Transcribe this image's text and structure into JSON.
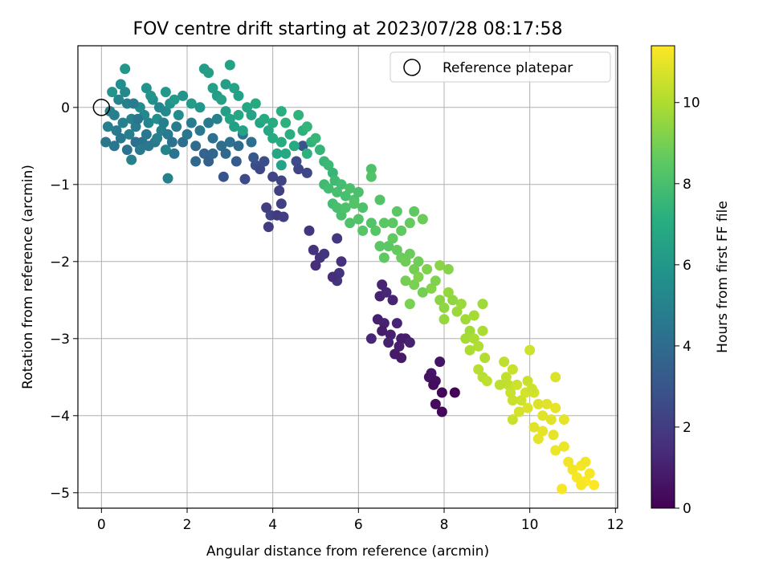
{
  "chart_data": {
    "type": "scatter",
    "title": "FOV centre drift starting at 2023/07/28 08:17:58",
    "xlabel": "Angular distance from reference (arcmin)",
    "ylabel": "Rotation from reference (arcmin)",
    "xlim": [
      -0.55,
      12.05
    ],
    "ylim": [
      -5.2,
      0.8
    ],
    "x_ticks": [
      0,
      2,
      4,
      6,
      8,
      10,
      12
    ],
    "y_ticks": [
      0,
      -1,
      -2,
      -3,
      -4,
      -5
    ],
    "x_tick_labels": [
      "0",
      "2",
      "4",
      "6",
      "8",
      "10",
      "12"
    ],
    "y_tick_labels": [
      "0",
      "−1",
      "−2",
      "−3",
      "−4",
      "−5"
    ],
    "grid": true,
    "legend": {
      "placement": "top-right",
      "entries": [
        "Reference platepar"
      ]
    },
    "reference_point": {
      "x": 0,
      "y": 0
    },
    "colorbar": {
      "label": "Hours from first FF file",
      "range": [
        0,
        11.4
      ],
      "ticks": [
        0,
        2,
        4,
        6,
        8,
        10
      ],
      "tick_labels": [
        "0",
        "2",
        "4",
        "6",
        "8",
        "10"
      ],
      "colormap": "viridis"
    },
    "points": [
      [
        0.3,
        -0.1,
        4.9
      ],
      [
        0.5,
        -0.2,
        5.0
      ],
      [
        0.7,
        -0.15,
        5.1
      ],
      [
        0.4,
        0.1,
        5.2
      ],
      [
        0.6,
        0.05,
        5.0
      ],
      [
        0.8,
        -0.25,
        4.8
      ],
      [
        1.0,
        -0.1,
        5.3
      ],
      [
        0.35,
        -0.3,
        4.7
      ],
      [
        0.55,
        0.2,
        5.4
      ],
      [
        0.9,
        0.0,
        5.5
      ],
      [
        0.2,
        -0.05,
        5.0
      ],
      [
        0.45,
        -0.4,
        4.6
      ],
      [
        0.65,
        -0.35,
        4.9
      ],
      [
        1.1,
        -0.2,
        5.2
      ],
      [
        1.3,
        -0.15,
        5.6
      ],
      [
        1.2,
        0.1,
        5.7
      ],
      [
        1.5,
        -0.05,
        5.4
      ],
      [
        1.4,
        -0.3,
        5.0
      ],
      [
        1.6,
        0.05,
        5.8
      ],
      [
        1.8,
        -0.1,
        5.5
      ],
      [
        0.75,
        0.05,
        4.8
      ],
      [
        0.85,
        -0.15,
        4.5
      ],
      [
        0.95,
        -0.45,
        4.4
      ],
      [
        1.05,
        -0.35,
        4.6
      ],
      [
        1.25,
        -0.45,
        4.5
      ],
      [
        1.35,
        0.0,
        5.3
      ],
      [
        1.45,
        -0.2,
        4.9
      ],
      [
        1.55,
        -0.35,
        4.7
      ],
      [
        1.65,
        -0.45,
        4.3
      ],
      [
        1.75,
        -0.25,
        4.8
      ],
      [
        0.25,
        0.2,
        5.9
      ],
      [
        0.45,
        0.3,
        5.6
      ],
      [
        0.55,
        0.5,
        6.0
      ],
      [
        1.05,
        0.25,
        5.8
      ],
      [
        1.15,
        0.15,
        5.9
      ],
      [
        1.5,
        0.2,
        6.1
      ],
      [
        1.7,
        0.1,
        6.2
      ],
      [
        1.9,
        0.15,
        5.9
      ],
      [
        2.1,
        0.05,
        6.3
      ],
      [
        2.3,
        0.0,
        6.0
      ],
      [
        0.15,
        -0.25,
        4.9
      ],
      [
        0.1,
        -0.45,
        4.6
      ],
      [
        0.3,
        -0.5,
        4.5
      ],
      [
        0.6,
        -0.55,
        4.3
      ],
      [
        0.8,
        -0.45,
        4.2
      ],
      [
        0.7,
        -0.68,
        5.0
      ],
      [
        0.9,
        -0.55,
        4.7
      ],
      [
        1.1,
        -0.5,
        4.6
      ],
      [
        1.3,
        -0.4,
        4.9
      ],
      [
        1.5,
        -0.55,
        5.2
      ],
      [
        1.55,
        -0.92,
        5.0
      ],
      [
        1.7,
        -0.6,
        4.4
      ],
      [
        1.9,
        -0.45,
        4.2
      ],
      [
        2.0,
        -0.35,
        4.5
      ],
      [
        2.2,
        -0.5,
        4.0
      ],
      [
        2.1,
        -0.2,
        4.8
      ],
      [
        2.3,
        -0.3,
        4.6
      ],
      [
        2.5,
        -0.2,
        4.7
      ],
      [
        2.6,
        -0.4,
        4.2
      ],
      [
        2.7,
        -0.15,
        5.0
      ],
      [
        2.2,
        -0.7,
        3.9
      ],
      [
        2.4,
        -0.6,
        3.7
      ],
      [
        2.5,
        -0.7,
        3.5
      ],
      [
        2.6,
        -0.6,
        3.8
      ],
      [
        2.8,
        -0.5,
        4.1
      ],
      [
        2.9,
        -0.6,
        3.9
      ],
      [
        3.0,
        -0.45,
        4.3
      ],
      [
        3.2,
        -0.5,
        4.0
      ],
      [
        3.3,
        -0.35,
        4.4
      ],
      [
        3.5,
        -0.45,
        4.2
      ],
      [
        2.85,
        -0.9,
        3.0
      ],
      [
        3.15,
        -0.7,
        3.3
      ],
      [
        3.35,
        -0.93,
        2.6
      ],
      [
        3.6,
        -0.75,
        2.8
      ],
      [
        3.7,
        -0.8,
        2.5
      ],
      [
        3.8,
        -0.7,
        2.7
      ],
      [
        3.55,
        -0.65,
        3.1
      ],
      [
        4.0,
        -0.9,
        2.4
      ],
      [
        4.2,
        -0.95,
        2.3
      ],
      [
        4.15,
        -1.08,
        2.2
      ],
      [
        3.85,
        -1.3,
        2.1
      ],
      [
        3.95,
        -1.4,
        2.3
      ],
      [
        4.1,
        -1.4,
        2.0
      ],
      [
        4.2,
        -1.25,
        2.2
      ],
      [
        4.25,
        -1.42,
        2.1
      ],
      [
        3.9,
        -1.55,
        2.0
      ],
      [
        4.55,
        -0.7,
        2.6
      ],
      [
        4.6,
        -0.8,
        2.4
      ],
      [
        4.8,
        -0.85,
        2.5
      ],
      [
        4.7,
        -0.5,
        3.0
      ],
      [
        4.85,
        -1.6,
        1.8
      ],
      [
        4.95,
        -1.85,
        1.7
      ],
      [
        5.1,
        -1.95,
        1.6
      ],
      [
        5.2,
        -1.9,
        1.8
      ],
      [
        5.0,
        -2.05,
        1.5
      ],
      [
        5.5,
        -1.7,
        1.9
      ],
      [
        5.55,
        -2.15,
        1.7
      ],
      [
        5.6,
        -2.0,
        1.6
      ],
      [
        5.5,
        -2.25,
        1.8
      ],
      [
        5.4,
        -2.2,
        1.5
      ],
      [
        6.55,
        -2.3,
        1.2
      ],
      [
        6.5,
        -2.45,
        1.1
      ],
      [
        6.65,
        -2.4,
        1.3
      ],
      [
        6.8,
        -2.5,
        1.2
      ],
      [
        6.45,
        -2.75,
        1.0
      ],
      [
        6.6,
        -2.8,
        1.1
      ],
      [
        6.55,
        -2.9,
        0.9
      ],
      [
        6.75,
        -2.95,
        1.0
      ],
      [
        6.9,
        -2.8,
        1.2
      ],
      [
        7.0,
        -3.0,
        0.9
      ],
      [
        6.3,
        -3.0,
        1.3
      ],
      [
        6.7,
        -3.05,
        1.1
      ],
      [
        6.85,
        -3.2,
        0.8
      ],
      [
        6.95,
        -3.1,
        1.0
      ],
      [
        7.1,
        -3.0,
        0.9
      ],
      [
        7.2,
        -3.05,
        1.1
      ],
      [
        7.0,
        -3.25,
        0.8
      ],
      [
        7.7,
        -3.45,
        0.7
      ],
      [
        7.8,
        -3.55,
        0.5
      ],
      [
        7.9,
        -3.3,
        0.6
      ],
      [
        7.65,
        -3.5,
        0.6
      ],
      [
        7.75,
        -3.6,
        0.4
      ],
      [
        7.8,
        -3.85,
        0.3
      ],
      [
        7.95,
        -3.7,
        0.2
      ],
      [
        8.25,
        -3.7,
        0.1
      ],
      [
        7.95,
        -3.95,
        0.2
      ],
      [
        3.0,
        0.55,
        6.6
      ],
      [
        2.9,
        0.3,
        6.4
      ],
      [
        3.1,
        0.25,
        6.7
      ],
      [
        3.2,
        0.15,
        6.5
      ],
      [
        3.4,
        0.0,
        6.8
      ],
      [
        3.5,
        -0.1,
        6.6
      ],
      [
        3.6,
        0.05,
        6.9
      ],
      [
        3.7,
        -0.2,
        6.7
      ],
      [
        3.8,
        -0.15,
        7.0
      ],
      [
        3.9,
        -0.3,
        6.8
      ],
      [
        2.4,
        0.5,
        6.3
      ],
      [
        2.5,
        0.45,
        6.4
      ],
      [
        2.6,
        0.25,
        6.5
      ],
      [
        2.7,
        0.15,
        6.3
      ],
      [
        2.8,
        0.1,
        6.6
      ],
      [
        2.9,
        -0.05,
        6.4
      ],
      [
        3.0,
        -0.15,
        6.7
      ],
      [
        3.1,
        -0.25,
        6.5
      ],
      [
        3.2,
        -0.1,
        6.8
      ],
      [
        3.3,
        -0.3,
        6.6
      ],
      [
        4.0,
        -0.4,
        7.0
      ],
      [
        4.2,
        -0.45,
        7.1
      ],
      [
        4.3,
        -0.6,
        6.9
      ],
      [
        4.4,
        -0.35,
        7.2
      ],
      [
        4.5,
        -0.5,
        7.0
      ],
      [
        4.1,
        -0.6,
        6.8
      ],
      [
        4.2,
        -0.75,
        6.7
      ],
      [
        4.0,
        -0.2,
        7.1
      ],
      [
        4.2,
        -0.05,
        7.2
      ],
      [
        4.3,
        -0.2,
        7.3
      ],
      [
        4.6,
        -0.1,
        7.4
      ],
      [
        4.7,
        -0.3,
        7.3
      ],
      [
        4.8,
        -0.25,
        7.5
      ],
      [
        4.9,
        -0.45,
        7.4
      ],
      [
        5.0,
        -0.4,
        7.6
      ],
      [
        5.1,
        -0.55,
        7.5
      ],
      [
        4.8,
        -0.6,
        7.3
      ],
      [
        5.2,
        -0.7,
        7.6
      ],
      [
        5.3,
        -0.75,
        7.7
      ],
      [
        5.4,
        -0.85,
        7.6
      ],
      [
        5.2,
        -1.0,
        7.8
      ],
      [
        5.3,
        -1.05,
        7.9
      ],
      [
        5.45,
        -0.95,
        7.8
      ],
      [
        5.5,
        -1.1,
        8.0
      ],
      [
        5.6,
        -1.0,
        7.9
      ],
      [
        5.7,
        -1.15,
        8.0
      ],
      [
        5.8,
        -1.05,
        8.1
      ],
      [
        5.9,
        -1.2,
        8.2
      ],
      [
        6.0,
        -1.1,
        8.1
      ],
      [
        6.1,
        -1.3,
        8.2
      ],
      [
        5.4,
        -1.25,
        7.9
      ],
      [
        5.5,
        -1.3,
        8.0
      ],
      [
        5.6,
        -1.4,
        8.1
      ],
      [
        5.7,
        -1.3,
        8.2
      ],
      [
        5.8,
        -1.5,
        8.2
      ],
      [
        5.9,
        -1.25,
        8.3
      ],
      [
        6.0,
        -1.45,
        8.3
      ],
      [
        6.1,
        -1.6,
        8.4
      ],
      [
        6.3,
        -1.5,
        8.3
      ],
      [
        6.4,
        -1.6,
        8.4
      ],
      [
        6.5,
        -1.8,
        8.5
      ],
      [
        6.6,
        -1.95,
        8.6
      ],
      [
        6.7,
        -1.8,
        8.5
      ],
      [
        6.8,
        -1.7,
        8.6
      ],
      [
        6.9,
        -1.85,
        8.7
      ],
      [
        7.0,
        -1.95,
        8.8
      ],
      [
        7.1,
        -2.0,
        8.9
      ],
      [
        7.2,
        -1.9,
        8.8
      ],
      [
        7.3,
        -2.1,
        9.0
      ],
      [
        7.4,
        -2.0,
        8.9
      ],
      [
        6.8,
        -1.5,
        8.5
      ],
      [
        7.0,
        -1.6,
        8.6
      ],
      [
        7.2,
        -1.5,
        8.7
      ],
      [
        7.3,
        -1.35,
        8.6
      ],
      [
        6.9,
        -1.35,
        8.5
      ],
      [
        7.5,
        -1.45,
        8.8
      ],
      [
        6.3,
        -0.8,
        8.2
      ],
      [
        6.3,
        -0.9,
        8.3
      ],
      [
        6.5,
        -1.2,
        8.3
      ],
      [
        6.6,
        -1.5,
        8.5
      ],
      [
        7.1,
        -2.25,
        9.0
      ],
      [
        7.3,
        -2.3,
        9.1
      ],
      [
        7.4,
        -2.2,
        9.2
      ],
      [
        7.5,
        -2.4,
        9.0
      ],
      [
        7.2,
        -2.55,
        9.1
      ],
      [
        7.6,
        -2.1,
        9.2
      ],
      [
        7.7,
        -2.35,
        9.3
      ],
      [
        7.8,
        -2.25,
        9.2
      ],
      [
        7.9,
        -2.05,
        9.4
      ],
      [
        8.1,
        -2.1,
        9.3
      ],
      [
        7.9,
        -2.5,
        9.4
      ],
      [
        8.0,
        -2.6,
        9.5
      ],
      [
        8.1,
        -2.4,
        9.6
      ],
      [
        8.2,
        -2.5,
        9.5
      ],
      [
        8.3,
        -2.65,
        9.7
      ],
      [
        8.0,
        -2.75,
        9.6
      ],
      [
        8.4,
        -2.55,
        9.7
      ],
      [
        8.5,
        -2.75,
        9.8
      ],
      [
        8.6,
        -2.9,
        9.8
      ],
      [
        8.7,
        -2.7,
        9.9
      ],
      [
        8.5,
        -3.0,
        9.9
      ],
      [
        8.6,
        -3.15,
        10.0
      ],
      [
        8.7,
        -3.0,
        10.0
      ],
      [
        8.8,
        -3.1,
        10.1
      ],
      [
        8.9,
        -2.9,
        10.0
      ],
      [
        8.8,
        -3.4,
        10.2
      ],
      [
        8.9,
        -3.5,
        10.2
      ],
      [
        9.0,
        -3.55,
        10.3
      ],
      [
        8.95,
        -3.25,
        10.1
      ],
      [
        8.9,
        -2.55,
        9.8
      ],
      [
        9.4,
        -3.3,
        10.3
      ],
      [
        9.45,
        -3.5,
        10.4
      ],
      [
        9.5,
        -3.6,
        10.4
      ],
      [
        9.6,
        -3.4,
        10.5
      ],
      [
        9.55,
        -3.7,
        10.5
      ],
      [
        9.7,
        -3.6,
        10.6
      ],
      [
        9.8,
        -3.8,
        10.6
      ],
      [
        9.9,
        -3.7,
        10.7
      ],
      [
        9.75,
        -3.95,
        10.7
      ],
      [
        9.95,
        -3.9,
        10.8
      ],
      [
        9.6,
        -3.8,
        10.5
      ],
      [
        10.0,
        -3.15,
        10.6
      ],
      [
        10.1,
        -3.7,
        10.7
      ],
      [
        10.2,
        -3.85,
        10.8
      ],
      [
        10.3,
        -4.0,
        10.9
      ],
      [
        10.4,
        -3.85,
        10.9
      ],
      [
        10.3,
        -4.2,
        11.0
      ],
      [
        10.5,
        -4.05,
        10.9
      ],
      [
        10.6,
        -3.9,
        11.0
      ],
      [
        10.55,
        -4.25,
        11.0
      ],
      [
        10.2,
        -4.3,
        11.0
      ],
      [
        10.6,
        -4.45,
        11.1
      ],
      [
        10.8,
        -4.4,
        11.1
      ],
      [
        10.9,
        -4.6,
        11.2
      ],
      [
        11.0,
        -4.7,
        11.2
      ],
      [
        11.1,
        -4.8,
        11.3
      ],
      [
        11.2,
        -4.65,
        11.3
      ],
      [
        11.3,
        -4.85,
        11.4
      ],
      [
        11.4,
        -4.75,
        11.3
      ],
      [
        11.5,
        -4.9,
        11.4
      ],
      [
        11.2,
        -4.9,
        11.3
      ],
      [
        11.3,
        -4.6,
        11.2
      ],
      [
        10.75,
        -4.95,
        11.3
      ],
      [
        10.6,
        -3.5,
        10.8
      ],
      [
        10.8,
        -4.05,
        11.0
      ],
      [
        10.1,
        -4.15,
        10.9
      ],
      [
        9.6,
        -4.05,
        10.5
      ],
      [
        9.3,
        -3.6,
        10.3
      ],
      [
        9.95,
        -3.55,
        10.5
      ],
      [
        10.05,
        -3.65,
        10.6
      ]
    ]
  }
}
